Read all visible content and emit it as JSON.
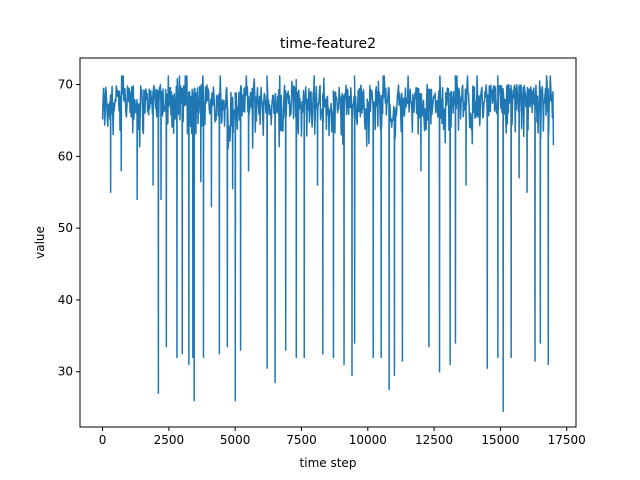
{
  "chart_data": {
    "type": "line",
    "title": "time-feature2",
    "xlabel": "time step",
    "ylabel": "value",
    "xlim": [
      -850,
      17850
    ],
    "ylim": [
      22.3,
      73.7
    ],
    "xticks": [
      0,
      2500,
      5000,
      7500,
      10000,
      12500,
      15000,
      17500
    ],
    "xtick_labels": [
      "0",
      "2500",
      "5000",
      "7500",
      "10000",
      "12500",
      "15000",
      "17500"
    ],
    "yticks": [
      30,
      40,
      50,
      60,
      70
    ],
    "ytick_labels": [
      "30",
      "40",
      "50",
      "60",
      "70"
    ],
    "series": [
      {
        "name": "feature2",
        "color": "#1f77b4",
        "n_points": 17000,
        "baseline": {
          "min": 61,
          "max": 71.2
        },
        "deep_drops": [
          {
            "x": 2100,
            "y": 27.0
          },
          {
            "x": 2400,
            "y": 33.5
          },
          {
            "x": 2800,
            "y": 32.0
          },
          {
            "x": 3000,
            "y": 32.5
          },
          {
            "x": 3250,
            "y": 31.0
          },
          {
            "x": 3400,
            "y": 32.0
          },
          {
            "x": 3450,
            "y": 26.0
          },
          {
            "x": 3800,
            "y": 32.0
          },
          {
            "x": 4400,
            "y": 32.5
          },
          {
            "x": 4700,
            "y": 33.5
          },
          {
            "x": 5000,
            "y": 26.0
          },
          {
            "x": 5200,
            "y": 33.0
          },
          {
            "x": 6200,
            "y": 30.5
          },
          {
            "x": 6500,
            "y": 28.5
          },
          {
            "x": 6900,
            "y": 33.0
          },
          {
            "x": 7300,
            "y": 32.0
          },
          {
            "x": 7600,
            "y": 32.0
          },
          {
            "x": 8300,
            "y": 32.5
          },
          {
            "x": 8700,
            "y": 32.0
          },
          {
            "x": 9100,
            "y": 31.0
          },
          {
            "x": 9400,
            "y": 29.5
          },
          {
            "x": 9500,
            "y": 34.0
          },
          {
            "x": 10200,
            "y": 32.0
          },
          {
            "x": 10500,
            "y": 32.0
          },
          {
            "x": 10800,
            "y": 27.5
          },
          {
            "x": 11000,
            "y": 29.5
          },
          {
            "x": 11300,
            "y": 31.5
          },
          {
            "x": 12300,
            "y": 33.5
          },
          {
            "x": 12700,
            "y": 30.0
          },
          {
            "x": 13100,
            "y": 31.0
          },
          {
            "x": 13300,
            "y": 34.0
          },
          {
            "x": 14500,
            "y": 30.5
          },
          {
            "x": 14900,
            "y": 32.0
          },
          {
            "x": 15100,
            "y": 24.5
          },
          {
            "x": 15400,
            "y": 32.0
          },
          {
            "x": 16300,
            "y": 31.5
          },
          {
            "x": 16500,
            "y": 34.0
          },
          {
            "x": 16800,
            "y": 31.0
          }
        ],
        "moderate_drops": [
          {
            "x": 300,
            "y": 55.0
          },
          {
            "x": 700,
            "y": 58.0
          },
          {
            "x": 1300,
            "y": 54.0
          },
          {
            "x": 1900,
            "y": 56.0
          },
          {
            "x": 2200,
            "y": 54.0
          },
          {
            "x": 3700,
            "y": 56.5
          },
          {
            "x": 4100,
            "y": 53.0
          },
          {
            "x": 4900,
            "y": 55.5
          },
          {
            "x": 5500,
            "y": 58.0
          },
          {
            "x": 8100,
            "y": 56.0
          },
          {
            "x": 12000,
            "y": 58.0
          },
          {
            "x": 13700,
            "y": 56.0
          },
          {
            "x": 15700,
            "y": 57.0
          },
          {
            "x": 16000,
            "y": 55.0
          }
        ]
      }
    ]
  }
}
